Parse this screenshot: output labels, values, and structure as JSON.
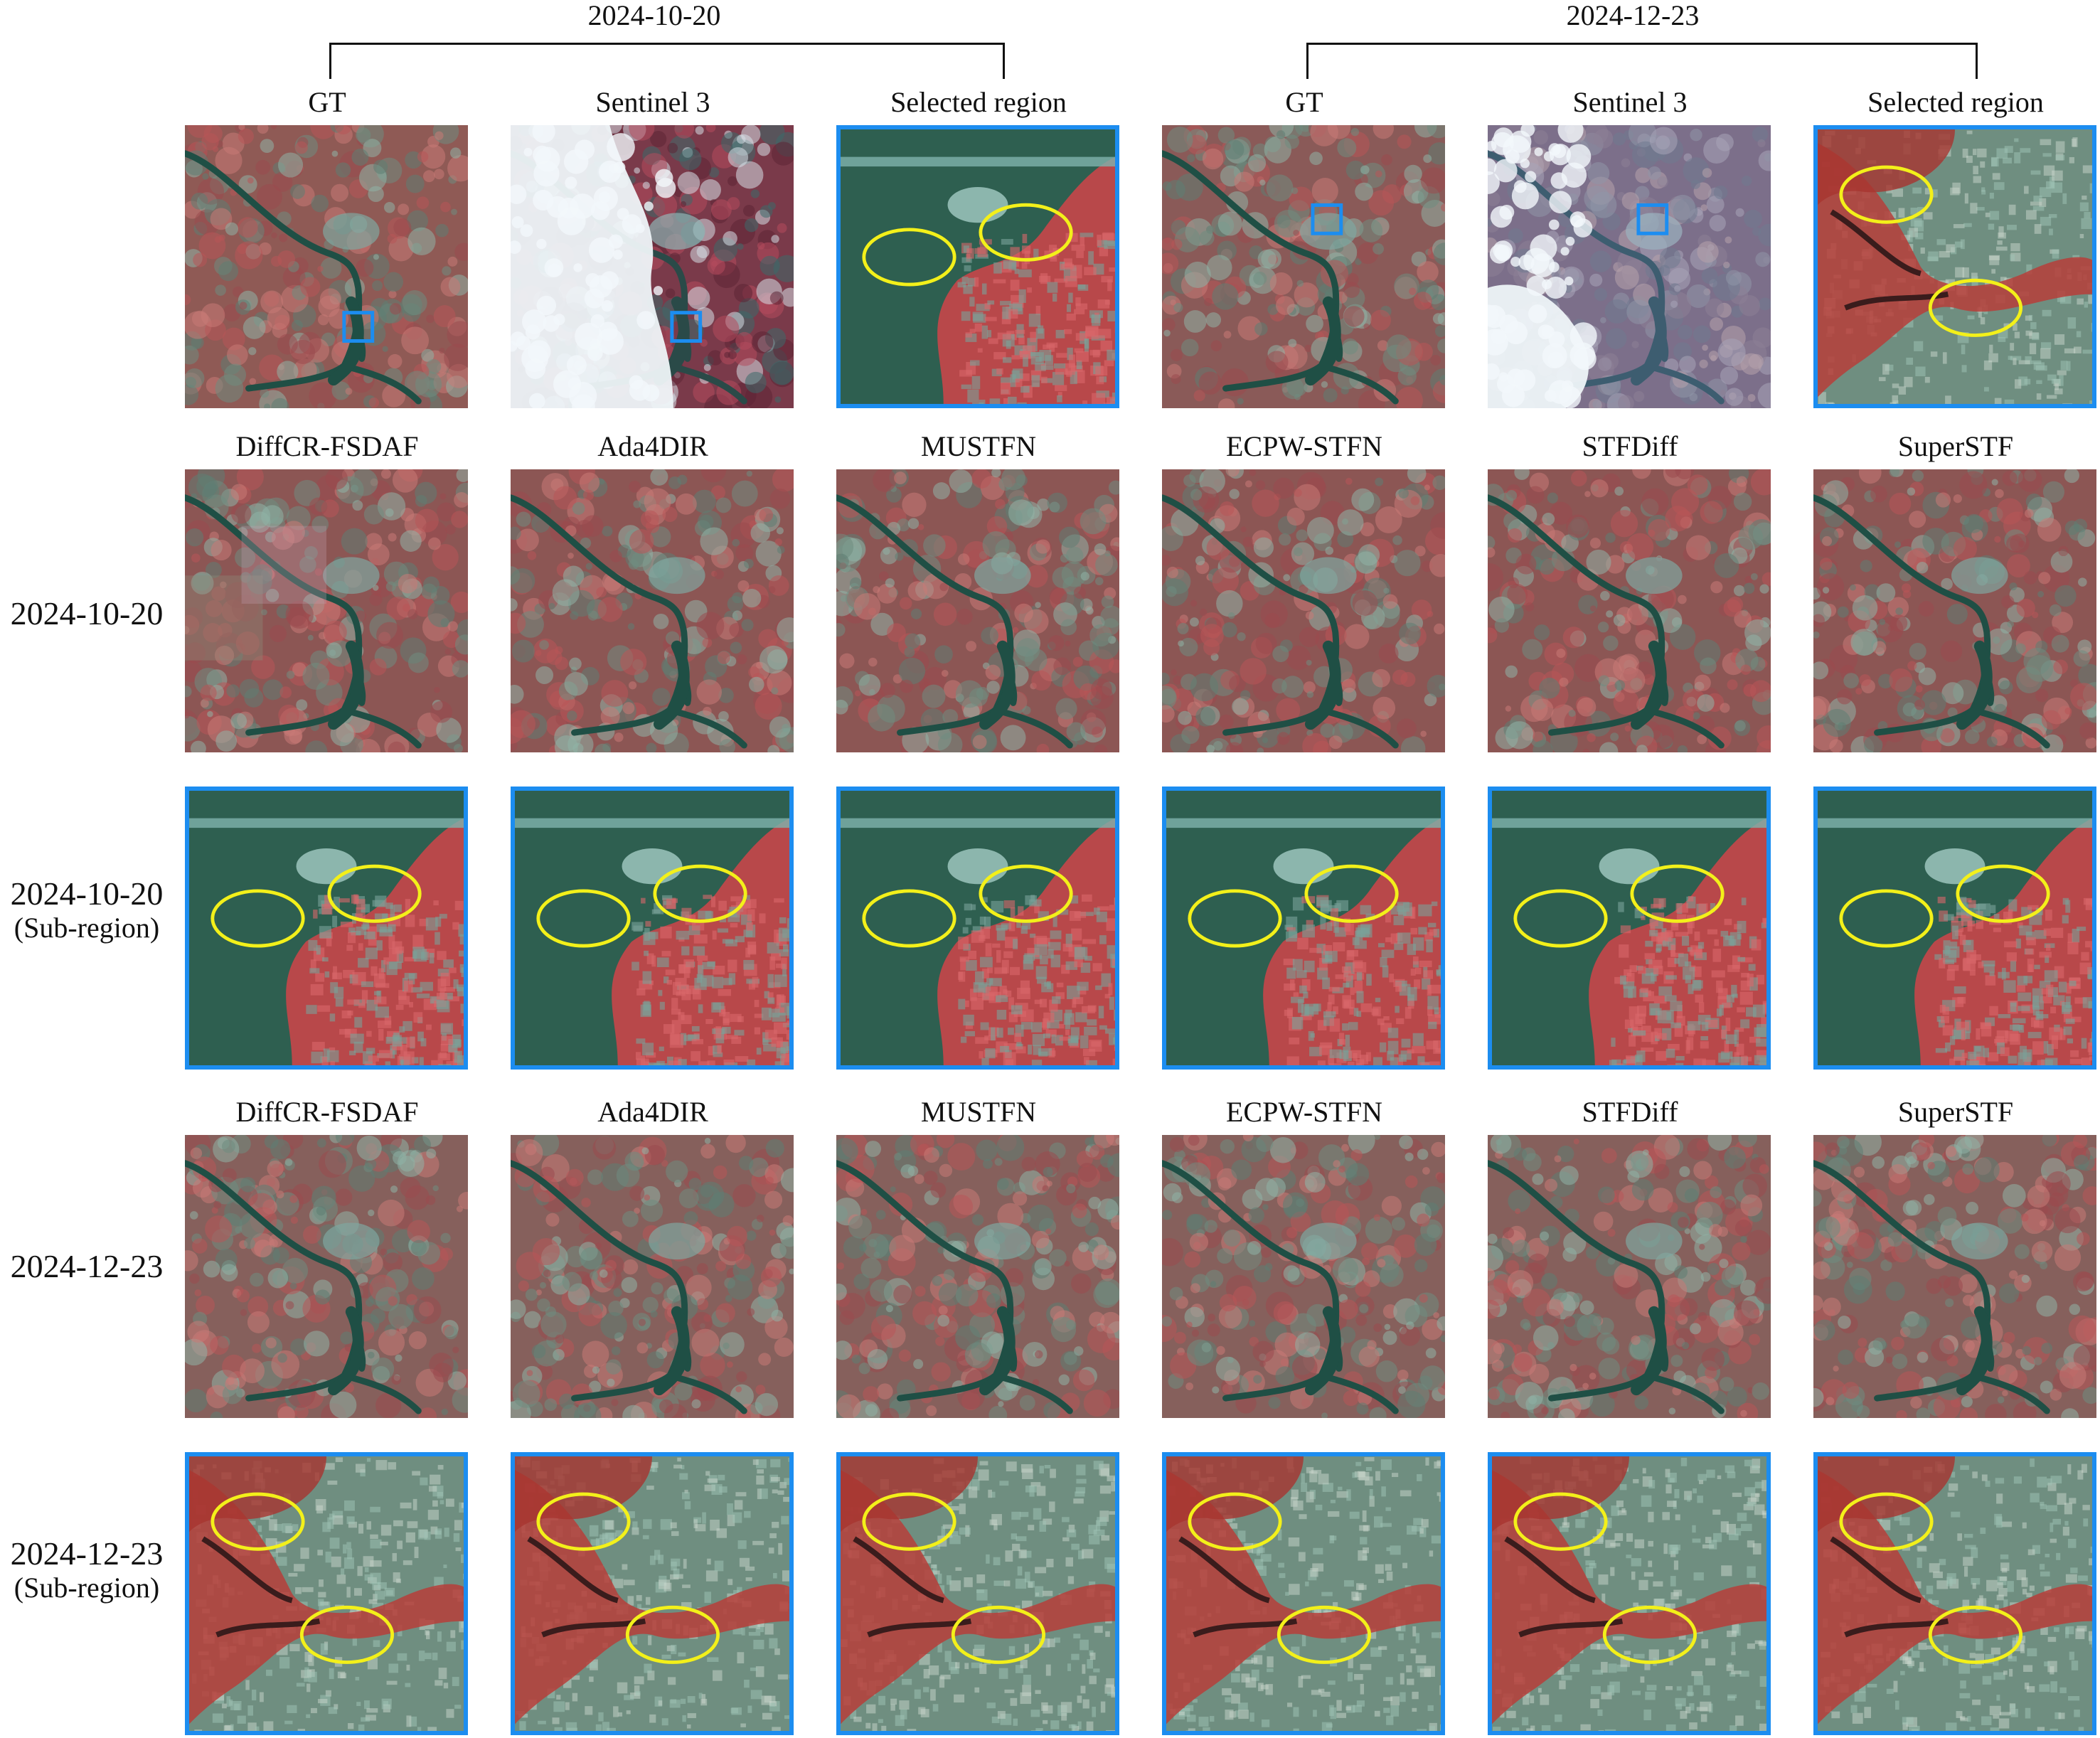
{
  "top_headers": [
    {
      "date": "2024-10-20"
    },
    {
      "date": "2024-12-23"
    }
  ],
  "row1_titles": [
    "GT",
    "Sentinel 3",
    "Selected region",
    "GT",
    "Sentinel 3",
    "Selected region"
  ],
  "method_titles_a": [
    "DiffCR-FSDAF",
    "Ada4DIR",
    "MUSTFN",
    "ECPW-STFN",
    "STFDiff",
    "SuperSTF"
  ],
  "method_titles_b": [
    "DiffCR-FSDAF",
    "Ada4DIR",
    "MUSTFN",
    "ECPW-STFN",
    "STFDiff",
    "SuperSTF"
  ],
  "row_labels": [
    {
      "main": "2024-10-20",
      "sub": ""
    },
    {
      "main": "2024-10-20",
      "sub": "(Sub-region)"
    },
    {
      "main": "2024-12-23",
      "sub": ""
    },
    {
      "main": "2024-12-23",
      "sub": "(Sub-region)"
    }
  ],
  "colors": {
    "frame": "#1c8df0",
    "ellipse": "#f3f01a",
    "marker": "#1c8df0"
  }
}
